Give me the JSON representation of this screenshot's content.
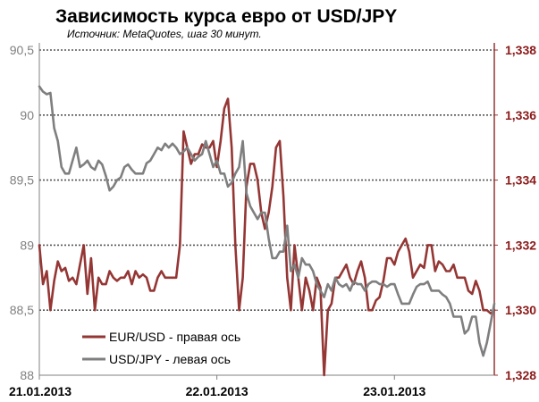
{
  "chart_data": {
    "type": "line",
    "title": "Зависимость курса евро от USD/JPY",
    "subtitle": "Источник: MetaQuotes, шаг 30 минут.",
    "x_tick_labels": [
      "21.01.2013",
      "22.01.2013",
      "23.01.2013"
    ],
    "x_tick_index": [
      0,
      48,
      96
    ],
    "y_left": {
      "min": 88,
      "max": 90.5,
      "step": 0.5,
      "tick_labels": [
        "88",
        "88,5",
        "89",
        "89,5",
        "90",
        "90,5"
      ]
    },
    "y_right": {
      "min": 1.328,
      "max": 1.338,
      "step": 0.002,
      "tick_labels": [
        "1,328",
        "1,330",
        "1,332",
        "1,334",
        "1,336",
        "1,338"
      ]
    },
    "grid": true,
    "legend_position": "bottom-left",
    "series": [
      {
        "name": "EUR/USD - правая ось",
        "axis": "right",
        "color": "#943634",
        "values": [
          1.332,
          1.3308,
          1.3312,
          1.33,
          1.3309,
          1.3315,
          1.3312,
          1.3313,
          1.3309,
          1.331,
          1.3308,
          1.3314,
          1.332,
          1.3305,
          1.3316,
          1.33,
          1.331,
          1.3308,
          1.3308,
          1.3312,
          1.331,
          1.3309,
          1.331,
          1.331,
          1.3312,
          1.3308,
          1.3312,
          1.331,
          1.3311,
          1.331,
          1.3306,
          1.3306,
          1.331,
          1.3312,
          1.331,
          1.331,
          1.331,
          1.331,
          1.332,
          1.3355,
          1.335,
          1.3345,
          1.3348,
          1.3348,
          1.3351,
          1.335,
          1.335,
          1.3352,
          1.3344,
          1.3352,
          1.3362,
          1.3365,
          1.335,
          1.332,
          1.33,
          1.331,
          1.3338,
          1.3345,
          1.3345,
          1.334,
          1.333,
          1.3325,
          1.333,
          1.3338,
          1.335,
          1.3352,
          1.3335,
          1.331,
          1.33,
          1.332,
          1.331,
          1.33,
          1.331,
          1.3306,
          1.33,
          1.331,
          1.3307,
          1.328,
          1.33,
          1.3302,
          1.331,
          1.331,
          1.3312,
          1.3314,
          1.331,
          1.3308,
          1.3312,
          1.3315,
          1.331,
          1.33,
          1.33,
          1.3303,
          1.3304,
          1.3309,
          1.3316,
          1.3316,
          1.3314,
          1.3318,
          1.332,
          1.3322,
          1.3318,
          1.331,
          1.3312,
          1.3314,
          1.3313,
          1.332,
          1.332,
          1.3312,
          1.3315,
          1.3314,
          1.3312,
          1.3312,
          1.3314,
          1.331,
          1.331,
          1.331,
          1.3306,
          1.3305,
          1.3309,
          1.3306,
          1.33,
          1.33,
          1.3299,
          1.33
        ]
      },
      {
        "name": "USD/JPY - левая ось",
        "axis": "left",
        "color": "#7f7f7f",
        "values": [
          90.22,
          90.18,
          90.16,
          90.17,
          89.9,
          89.8,
          89.6,
          89.55,
          89.55,
          89.65,
          89.75,
          89.6,
          89.62,
          89.65,
          89.6,
          89.58,
          89.65,
          89.62,
          89.53,
          89.42,
          89.45,
          89.5,
          89.52,
          89.6,
          89.62,
          89.58,
          89.55,
          89.55,
          89.55,
          89.63,
          89.65,
          89.7,
          89.75,
          89.73,
          89.78,
          89.75,
          89.78,
          89.75,
          89.7,
          89.72,
          89.75,
          89.7,
          89.65,
          89.68,
          89.7,
          89.8,
          89.7,
          89.6,
          89.65,
          89.55,
          89.55,
          89.45,
          89.48,
          89.55,
          89.6,
          89.8,
          89.4,
          89.3,
          89.25,
          89.2,
          89.25,
          89.25,
          89.05,
          88.9,
          88.9,
          88.95,
          88.95,
          89.15,
          88.8,
          88.85,
          88.75,
          88.9,
          88.85,
          88.85,
          88.8,
          88.7,
          88.65,
          88.6,
          88.7,
          88.65,
          88.75,
          88.7,
          88.68,
          88.7,
          88.65,
          88.72,
          88.7,
          88.7,
          88.65,
          88.7,
          88.72,
          88.72,
          88.7,
          88.7,
          88.68,
          88.7,
          88.7,
          88.62,
          88.55,
          88.55,
          88.55,
          88.62,
          88.68,
          88.7,
          88.7,
          88.72,
          88.65,
          88.65,
          88.65,
          88.62,
          88.6,
          88.55,
          88.45,
          88.45,
          88.45,
          88.32,
          88.35,
          88.45,
          88.45,
          88.25,
          88.15,
          88.25,
          88.4,
          88.55
        ]
      }
    ]
  }
}
